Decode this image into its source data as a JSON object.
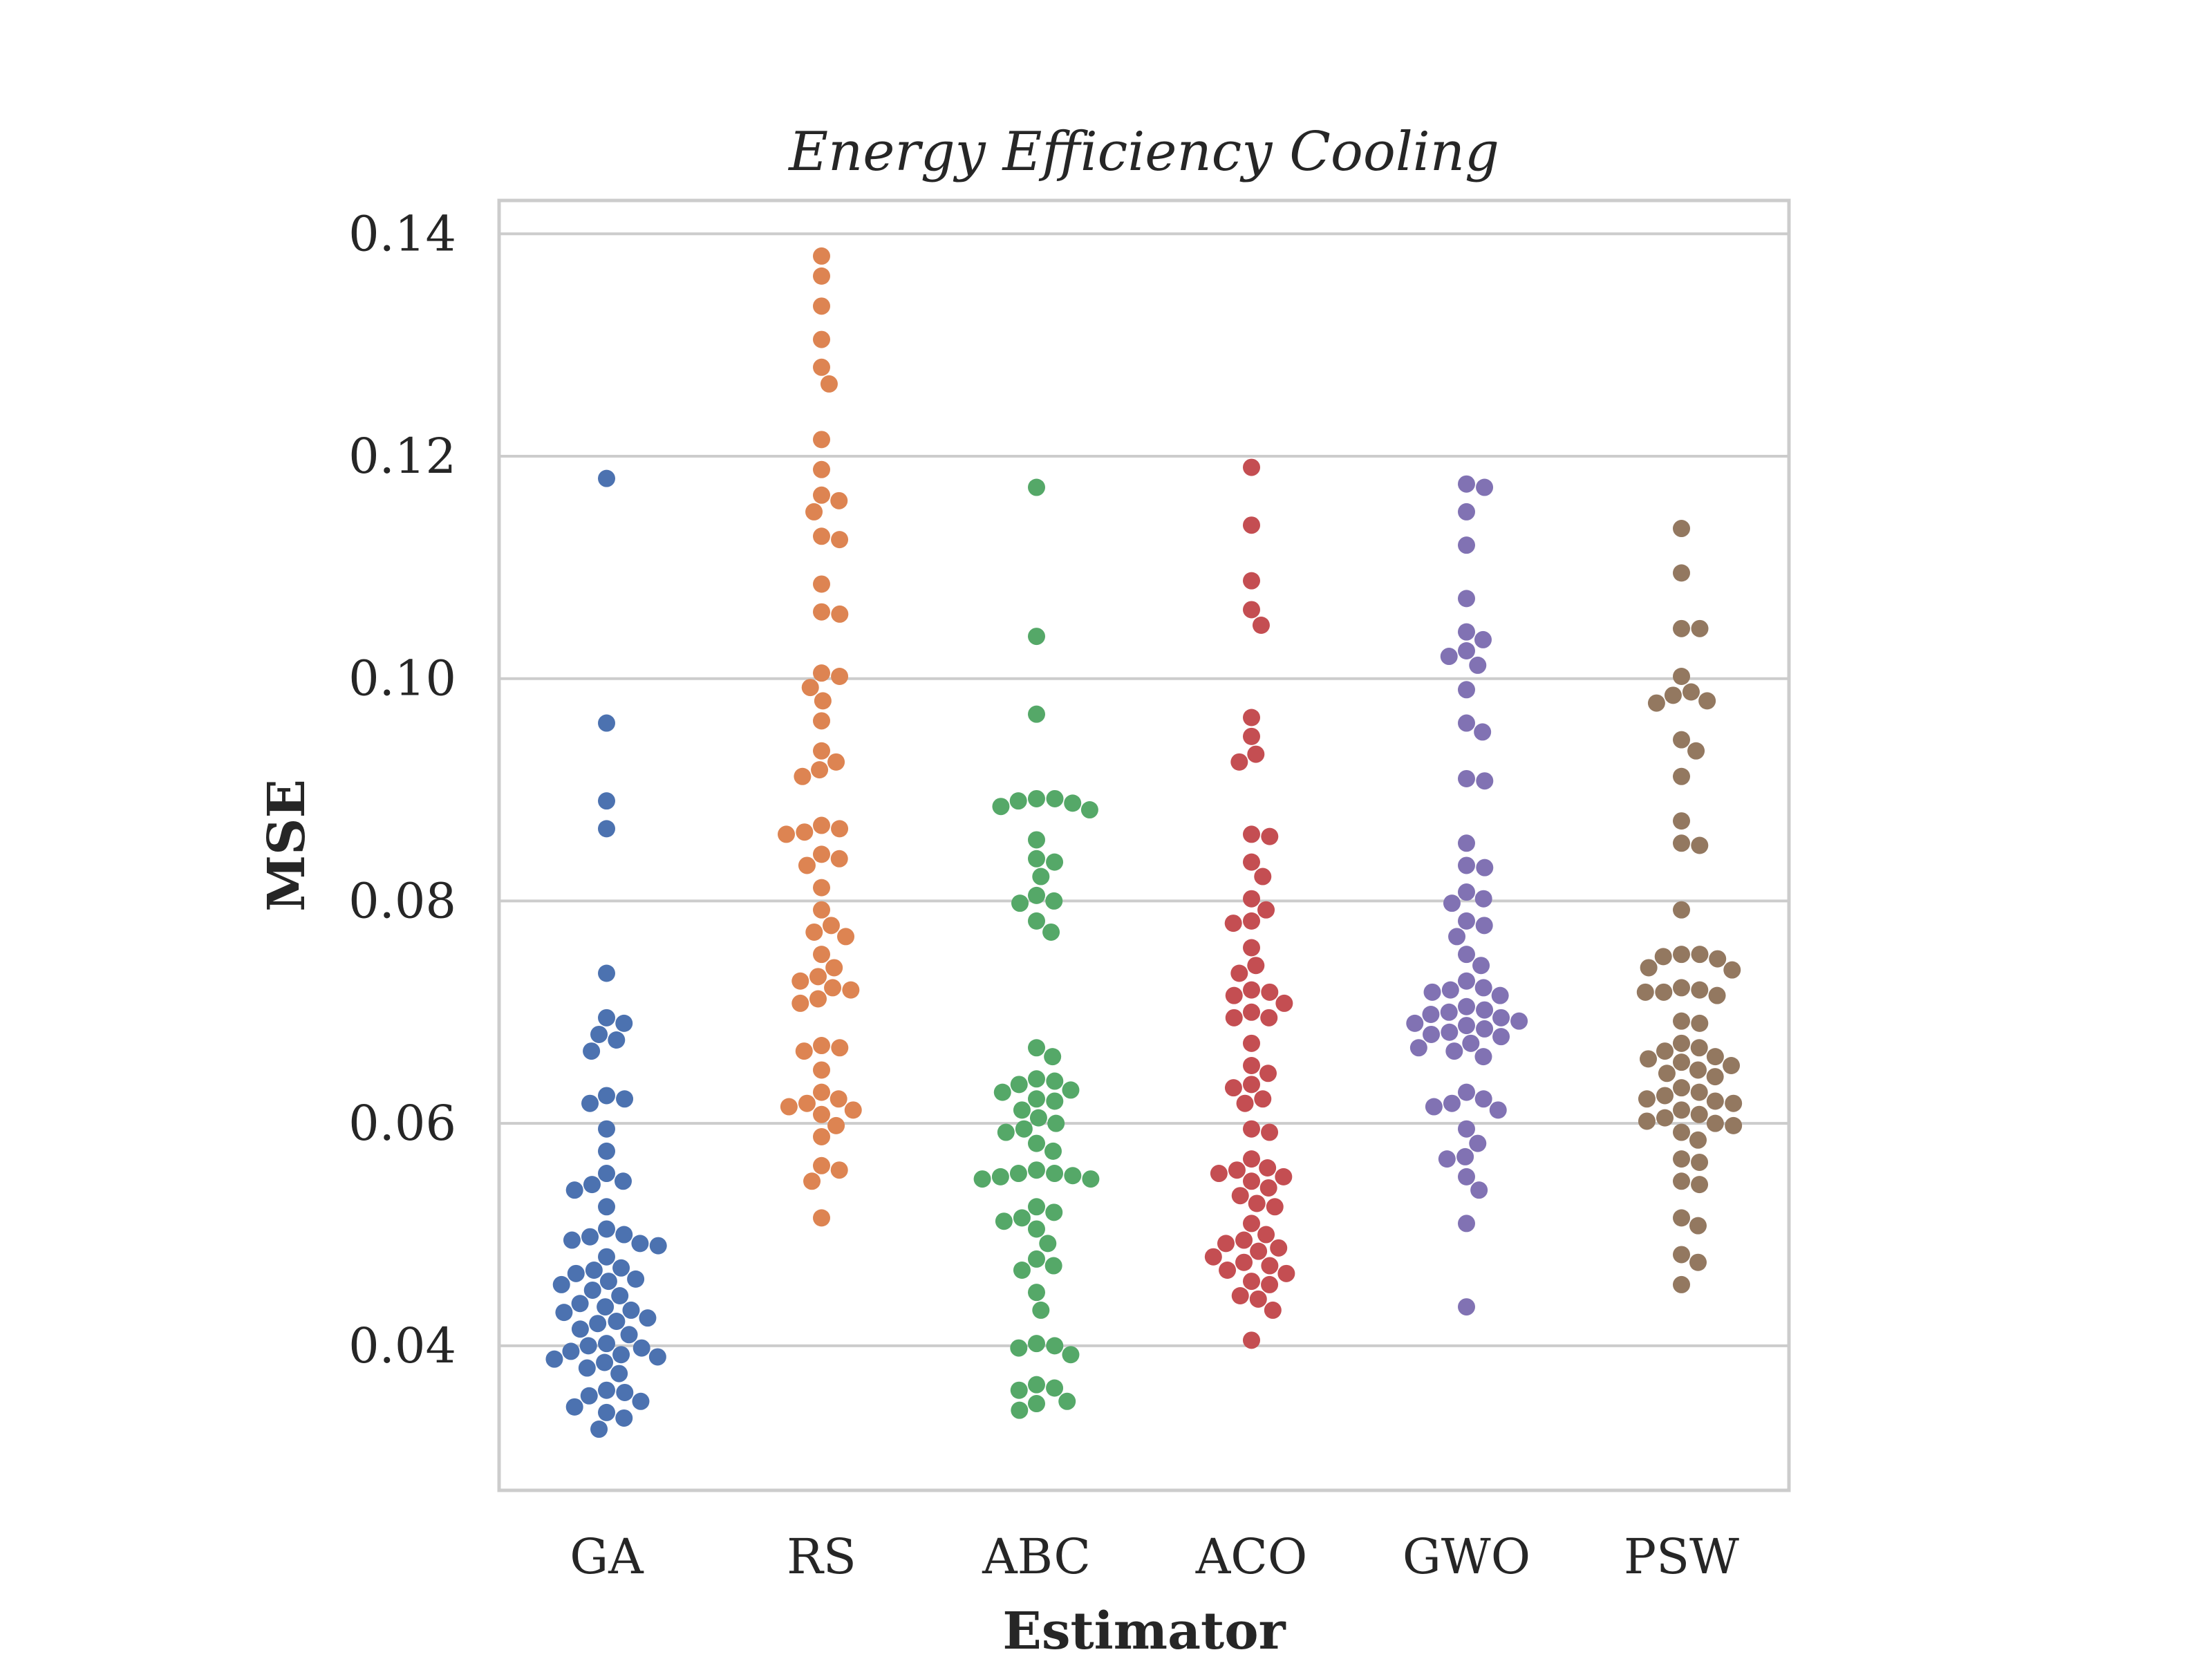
{
  "chart_data": {
    "type": "scatter",
    "subtype": "swarm",
    "title": "Energy Efficiency Cooling",
    "xlabel": "Estimator",
    "ylabel": "MSE",
    "ylim": [
      0.027,
      0.143
    ],
    "yticks": [
      "0.04",
      "0.06",
      "0.08",
      "0.10",
      "0.12",
      "0.14"
    ],
    "grid": true,
    "legend": "none",
    "categories": [
      "GA",
      "RS",
      "ABC",
      "ACO",
      "GWO",
      "PSW"
    ],
    "series": [
      {
        "category": "GA",
        "color": "#4c72b0",
        "values": [
          0.118,
          0.096,
          0.089,
          0.0865,
          0.0735,
          0.0695,
          0.069,
          0.068,
          0.0675,
          0.0665,
          0.0625,
          0.0622,
          0.0618,
          0.0595,
          0.0575,
          0.0555,
          0.0548,
          0.0545,
          0.054,
          0.0525,
          0.0505,
          0.05,
          0.0498,
          0.0495,
          0.0492,
          0.049,
          0.048,
          0.047,
          0.0468,
          0.0465,
          0.046,
          0.0458,
          0.0455,
          0.045,
          0.0445,
          0.0438,
          0.0435,
          0.0432,
          0.043,
          0.0425,
          0.0422,
          0.042,
          0.0415,
          0.041,
          0.0402,
          0.04,
          0.0398,
          0.0395,
          0.0392,
          0.039,
          0.0388,
          0.0385,
          0.038,
          0.0375,
          0.036,
          0.0358,
          0.0355,
          0.035,
          0.0345,
          0.034,
          0.0335,
          0.0325
        ]
      },
      {
        "category": "RS",
        "color": "#dd8452",
        "values": [
          0.138,
          0.1362,
          0.1335,
          0.1305,
          0.128,
          0.1265,
          0.1215,
          0.1188,
          0.1165,
          0.116,
          0.115,
          0.1128,
          0.1125,
          0.1085,
          0.106,
          0.1058,
          0.1005,
          0.1002,
          0.0992,
          0.098,
          0.0962,
          0.0935,
          0.0925,
          0.0918,
          0.0912,
          0.0868,
          0.0865,
          0.0862,
          0.086,
          0.0842,
          0.0838,
          0.0832,
          0.0812,
          0.0792,
          0.0778,
          0.0772,
          0.0768,
          0.0752,
          0.074,
          0.0732,
          0.0728,
          0.0722,
          0.072,
          0.0712,
          0.0708,
          0.067,
          0.0668,
          0.0665,
          0.0648,
          0.0628,
          0.0622,
          0.0618,
          0.0615,
          0.0612,
          0.0608,
          0.0598,
          0.0588,
          0.0562,
          0.0558,
          0.0548,
          0.0515
        ]
      },
      {
        "category": "ABC",
        "color": "#55a868",
        "values": [
          0.1172,
          0.1038,
          0.0968,
          0.0892,
          0.0892,
          0.089,
          0.0888,
          0.0885,
          0.0882,
          0.0855,
          0.0838,
          0.0835,
          0.0822,
          0.0805,
          0.08,
          0.0798,
          0.0782,
          0.0772,
          0.0668,
          0.066,
          0.064,
          0.0638,
          0.0635,
          0.063,
          0.0628,
          0.0622,
          0.062,
          0.0612,
          0.0605,
          0.06,
          0.0595,
          0.0592,
          0.0582,
          0.0575,
          0.0558,
          0.0555,
          0.0555,
          0.0553,
          0.0552,
          0.055,
          0.055,
          0.0525,
          0.052,
          0.0515,
          0.0512,
          0.0505,
          0.0492,
          0.0478,
          0.0472,
          0.0468,
          0.0448,
          0.0432,
          0.0402,
          0.04,
          0.0398,
          0.0392,
          0.0365,
          0.0362,
          0.036,
          0.035,
          0.0348,
          0.0342
        ]
      },
      {
        "category": "ACO",
        "color": "#c44e52",
        "values": [
          0.119,
          0.1138,
          0.1088,
          0.1062,
          0.1048,
          0.0965,
          0.0948,
          0.0925,
          0.0932,
          0.086,
          0.0858,
          0.0835,
          0.0822,
          0.0802,
          0.0792,
          0.0782,
          0.078,
          0.0758,
          0.0742,
          0.0735,
          0.072,
          0.0718,
          0.0715,
          0.0708,
          0.07,
          0.0695,
          0.0695,
          0.0672,
          0.0652,
          0.0645,
          0.0635,
          0.0632,
          0.0622,
          0.0618,
          0.0595,
          0.0592,
          0.0568,
          0.056,
          0.0558,
          0.0555,
          0.0552,
          0.0548,
          0.0542,
          0.0535,
          0.0528,
          0.0525,
          0.051,
          0.05,
          0.0495,
          0.0492,
          0.0488,
          0.0485,
          0.048,
          0.0475,
          0.0472,
          0.0468,
          0.0465,
          0.0458,
          0.0455,
          0.0445,
          0.0442,
          0.0432,
          0.0405
        ]
      },
      {
        "category": "GWO",
        "color": "#8172b3",
        "values": [
          0.1175,
          0.1172,
          0.115,
          0.112,
          0.1072,
          0.1042,
          0.1035,
          0.1025,
          0.102,
          0.1012,
          0.099,
          0.096,
          0.0952,
          0.091,
          0.0908,
          0.0852,
          0.0832,
          0.083,
          0.0808,
          0.0802,
          0.0798,
          0.0782,
          0.0778,
          0.0768,
          0.0752,
          0.0742,
          0.0728,
          0.0722,
          0.072,
          0.0718,
          0.0715,
          0.0705,
          0.0702,
          0.07,
          0.0698,
          0.0695,
          0.0692,
          0.069,
          0.0688,
          0.0685,
          0.0682,
          0.068,
          0.0678,
          0.0672,
          0.0668,
          0.0665,
          0.066,
          0.0628,
          0.0622,
          0.0618,
          0.0615,
          0.0612,
          0.0595,
          0.0582,
          0.057,
          0.0568,
          0.0552,
          0.054,
          0.051,
          0.0435
        ]
      },
      {
        "category": "PSW",
        "color": "#937860",
        "values": [
          0.1135,
          0.1095,
          0.1045,
          0.1045,
          0.1002,
          0.0988,
          0.0985,
          0.098,
          0.0978,
          0.0945,
          0.0935,
          0.0912,
          0.0872,
          0.0852,
          0.085,
          0.0792,
          0.0752,
          0.0752,
          0.075,
          0.0748,
          0.074,
          0.0738,
          0.0722,
          0.072,
          0.0718,
          0.0718,
          0.0715,
          0.0692,
          0.069,
          0.0672,
          0.0668,
          0.0665,
          0.066,
          0.0658,
          0.0655,
          0.0652,
          0.0648,
          0.0645,
          0.0642,
          0.0632,
          0.0628,
          0.0625,
          0.0622,
          0.062,
          0.0618,
          0.0612,
          0.0608,
          0.0605,
          0.0602,
          0.06,
          0.0598,
          0.0592,
          0.0585,
          0.0568,
          0.0565,
          0.0548,
          0.0545,
          0.0515,
          0.0508,
          0.0482,
          0.0475,
          0.0455
        ]
      }
    ]
  }
}
